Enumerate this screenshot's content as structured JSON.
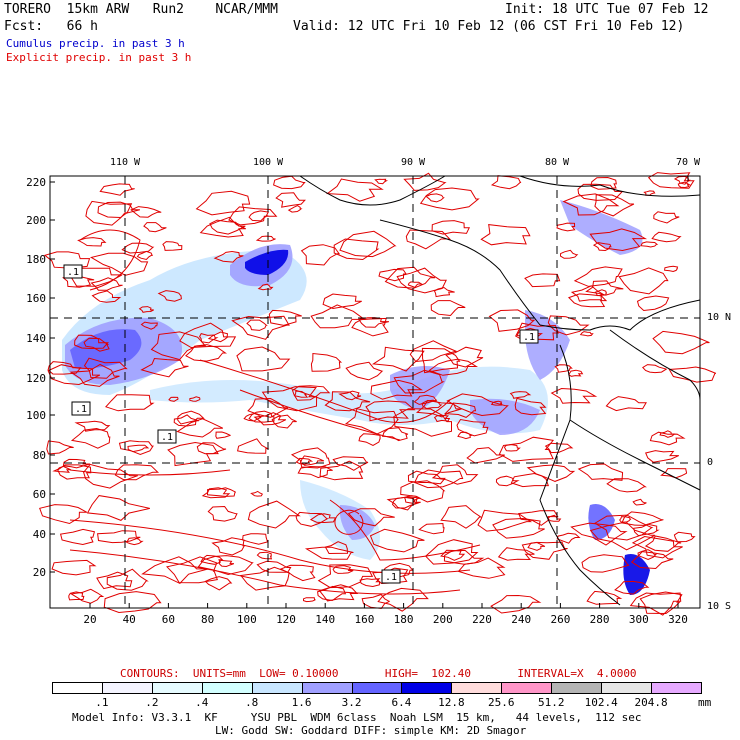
{
  "header": {
    "model": "TORERO  15km ARW   Run2    NCAR/MMM",
    "init": "Init: 18 UTC Tue 07 Feb 12",
    "fcst": "Fcst:   66 h",
    "valid": "Valid: 12 UTC Fri 10 Feb 12 (06 CST Fri 10 Feb 12)",
    "field1": "Cumulus precip. in past 3 h",
    "field2": "Explicit precip. in past 3 h",
    "field1_color": "#0000cc",
    "field2_color": "#e00000"
  },
  "axes": {
    "lon_labels": [
      "110 W",
      "100 W",
      "90 W",
      "80 W",
      "70 W"
    ],
    "lat_labels": [
      "10 N",
      "0",
      "10 S"
    ],
    "y_ticks": [
      "220",
      "200",
      "180",
      "160",
      "140",
      "120",
      "100",
      "80",
      "60",
      "40",
      "20"
    ],
    "x_ticks": [
      "20",
      "40",
      "60",
      "80",
      "100",
      "120",
      "140",
      "160",
      "180",
      "200",
      "220",
      "240",
      "260",
      "280",
      "300",
      "320"
    ]
  },
  "low_markers": [
    ".1",
    ".1",
    ".1",
    ".1",
    ".1"
  ],
  "contour_info": {
    "text": "CONTOURS:  UNITS=mm  LOW= 0.10000       HIGH=  102.40       INTERVAL=X  4.0000",
    "color": "#cc0000"
  },
  "colorbar": {
    "labels": [
      ".1",
      ".2",
      ".4",
      ".8",
      "1.6",
      "3.2",
      "6.4",
      "12.8",
      "25.6",
      "51.2",
      "102.4",
      "204.8"
    ],
    "unit": "mm",
    "colors": [
      "#ffffff",
      "#f4f4ff",
      "#e6fbff",
      "#d2ffff",
      "#c8e6ff",
      "#a0a0ff",
      "#6464ff",
      "#0000e6",
      "#ffdcdc",
      "#ff96c8",
      "#b4b4b4",
      "#e6e6e6",
      "#e6aaff"
    ]
  },
  "model_info": {
    "line1": "Model Info: V3.3.1  KF     YSU PBL  WDM 6class  Noah LSM  15 km,   44 levels,  112 sec",
    "line2": "LW: Godd SW: Goddard DIFF: simple KM: 2D Smagor"
  }
}
